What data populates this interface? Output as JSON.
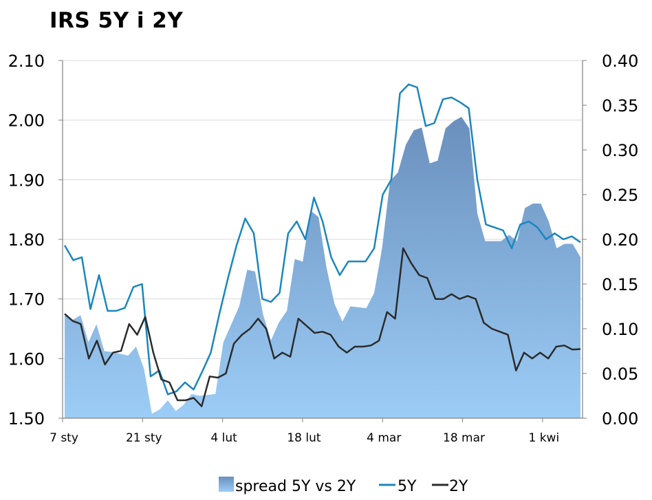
{
  "chart_data": {
    "type": "line+area",
    "title": "IRS 5Y i 2Y",
    "x_labels": [
      "7 sty",
      "21 sty",
      "4 lut",
      "18 lut",
      "4 mar",
      "18 mar",
      "1 kwi"
    ],
    "y_left": {
      "ylim": [
        1.5,
        2.1
      ],
      "ticks": [
        "1.50",
        "1.60",
        "1.70",
        "1.80",
        "1.90",
        "2.00",
        "2.10"
      ]
    },
    "y_right": {
      "ylim": [
        0.0,
        0.4
      ],
      "ticks": [
        "0.00",
        "0.05",
        "0.10",
        "0.15",
        "0.20",
        "0.25",
        "0.30",
        "0.35",
        "0.40"
      ]
    },
    "colors": {
      "five_y": "#1a86bd",
      "two_y": "#2b2b2b",
      "area_top": "#6a8fbd",
      "area_bottom": "#9ccdf6",
      "grid": "#d9d9d9",
      "axis": "#808080"
    },
    "legend": [
      "spread 5Y vs 2Y",
      "5Y",
      "2Y"
    ],
    "series": [
      {
        "name": "5Y",
        "axis": "left",
        "values": [
          1.79,
          1.765,
          1.77,
          1.683,
          1.74,
          1.68,
          1.68,
          1.685,
          1.72,
          1.725,
          1.57,
          1.58,
          1.54,
          1.545,
          1.56,
          1.548,
          1.578,
          1.61,
          1.675,
          1.735,
          1.79,
          1.835,
          1.81,
          1.7,
          1.695,
          1.71,
          1.81,
          1.83,
          1.8,
          1.87,
          1.83,
          1.77,
          1.74,
          1.763,
          1.763,
          1.763,
          1.785,
          1.875,
          1.9,
          2.045,
          2.06,
          2.055,
          1.99,
          1.995,
          2.035,
          2.038,
          2.03,
          2.02,
          1.9,
          1.825,
          1.82,
          1.815,
          1.785,
          1.825,
          1.83,
          1.82,
          1.8,
          1.81,
          1.8,
          1.805,
          1.795
        ]
      },
      {
        "name": "2Y",
        "axis": "left",
        "values": [
          1.675,
          1.663,
          1.658,
          1.6,
          1.63,
          1.59,
          1.61,
          1.613,
          1.658,
          1.64,
          1.67,
          1.61,
          1.565,
          1.56,
          1.53,
          1.53,
          1.534,
          1.52,
          1.57,
          1.568,
          1.575,
          1.625,
          1.64,
          1.65,
          1.667,
          1.65,
          1.6,
          1.61,
          1.603,
          1.667,
          1.655,
          1.643,
          1.645,
          1.64,
          1.62,
          1.61,
          1.62,
          1.62,
          1.622,
          1.63,
          1.678,
          1.667,
          1.785,
          1.76,
          1.74,
          1.735,
          1.7,
          1.7,
          1.708,
          1.7,
          1.705,
          1.7,
          1.66,
          1.65,
          1.645,
          1.64,
          1.58,
          1.61,
          1.6,
          1.61,
          1.6,
          1.62,
          1.622,
          1.615,
          1.616
        ]
      },
      {
        "name": "spread 5Y vs 2Y",
        "axis": "right",
        "type": "area",
        "values": [
          0.115,
          0.11,
          0.115,
          0.085,
          0.105,
          0.075,
          0.074,
          0.072,
          0.07,
          0.08,
          0.055,
          0.005,
          0.01,
          0.02,
          0.008,
          0.015,
          0.027,
          0.025,
          0.026,
          0.027,
          0.085,
          0.105,
          0.125,
          0.166,
          0.164,
          0.116,
          0.087,
          0.107,
          0.12,
          0.178,
          0.175,
          0.232,
          0.225,
          0.168,
          0.128,
          0.108,
          0.125,
          0.124,
          0.123,
          0.14,
          0.19,
          0.265,
          0.275,
          0.306,
          0.322,
          0.325,
          0.285,
          0.288,
          0.324,
          0.332,
          0.337,
          0.324,
          0.229,
          0.198,
          0.198,
          0.198,
          0.205,
          0.198,
          0.235,
          0.24,
          0.24,
          0.22,
          0.19,
          0.195,
          0.195,
          0.18
        ]
      }
    ]
  }
}
